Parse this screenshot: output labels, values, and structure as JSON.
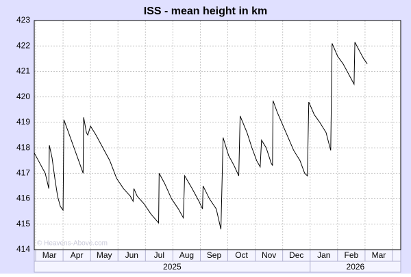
{
  "chart_data": {
    "type": "line",
    "title": "ISS - mean height in km",
    "months": [
      "Mar",
      "Apr",
      "May",
      "Jun",
      "Jul",
      "Aug",
      "Sep",
      "Oct",
      "Nov",
      "Dec",
      "Jan",
      "Feb",
      "Mar"
    ],
    "years": [
      "2025",
      "2026"
    ],
    "year_ticks": [
      10
    ],
    "xlim": [
      -0.05,
      13.3
    ],
    "xticks": [
      0,
      1,
      2,
      3,
      4,
      5,
      6,
      7,
      8,
      9,
      10,
      11,
      12,
      13
    ],
    "ylim": [
      414,
      423
    ],
    "yticks": [
      414,
      415,
      416,
      417,
      418,
      419,
      420,
      421,
      422,
      423
    ],
    "grid": true,
    "watermark": "© Heavens-Above.com",
    "series": [
      {
        "color": "#000000",
        "x": [
          -0.05,
          0.15,
          0.35,
          0.48,
          0.5,
          0.6,
          0.7,
          0.8,
          0.9,
          1.0,
          1.03,
          1.2,
          1.4,
          1.6,
          1.73,
          1.75,
          1.85,
          1.9,
          2.0,
          2.2,
          2.45,
          2.7,
          2.95,
          3.2,
          3.45,
          3.55,
          3.58,
          3.7,
          3.95,
          4.2,
          4.48,
          4.5,
          4.7,
          4.95,
          5.2,
          5.38,
          5.43,
          5.7,
          5.95,
          6.08,
          6.1,
          6.33,
          6.58,
          6.75,
          6.83,
          7.03,
          7.23,
          7.4,
          7.45,
          7.7,
          7.88,
          8.05,
          8.18,
          8.23,
          8.4,
          8.58,
          8.63,
          8.65,
          8.8,
          9.0,
          9.2,
          9.4,
          9.63,
          9.8,
          9.9,
          9.95,
          10.15,
          10.35,
          10.58,
          10.7,
          10.75,
          10.8,
          11.0,
          11.2,
          11.4,
          11.6,
          11.63,
          11.8,
          11.95,
          12.08
        ],
        "values": [
          417.8,
          417.4,
          417.0,
          416.4,
          418.1,
          417.6,
          416.8,
          416.1,
          415.7,
          415.55,
          419.1,
          418.6,
          418.0,
          417.4,
          417.0,
          419.2,
          418.6,
          418.5,
          418.85,
          418.5,
          418.0,
          417.5,
          416.8,
          416.4,
          416.1,
          415.9,
          416.4,
          416.1,
          415.8,
          415.4,
          415.05,
          417.0,
          416.6,
          416.0,
          415.6,
          415.25,
          416.9,
          416.4,
          415.9,
          415.6,
          416.5,
          416.0,
          415.6,
          414.8,
          418.4,
          417.7,
          417.3,
          416.9,
          419.25,
          418.6,
          418.0,
          417.5,
          417.25,
          418.3,
          418.0,
          417.4,
          417.3,
          419.85,
          419.4,
          418.9,
          418.4,
          417.9,
          417.5,
          417.0,
          416.9,
          419.8,
          419.3,
          419.0,
          418.6,
          418.1,
          417.9,
          422.1,
          421.6,
          421.3,
          420.9,
          420.5,
          422.15,
          421.8,
          421.5,
          421.3
        ]
      }
    ]
  }
}
